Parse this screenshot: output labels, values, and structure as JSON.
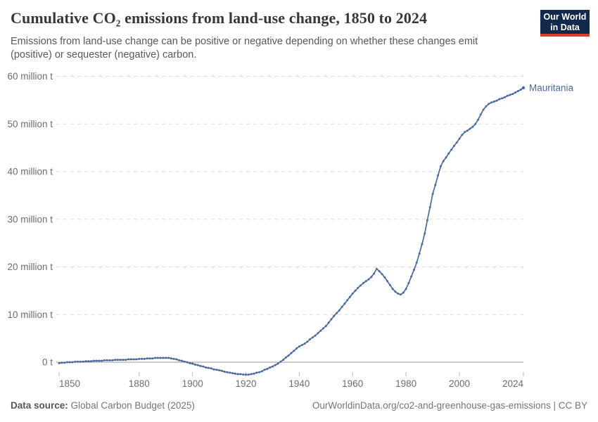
{
  "header": {
    "title": "Cumulative CO₂ emissions from land-use change, 1850 to 2024",
    "subtitle": "Emissions from land-use change can be positive or negative depending on whether these changes emit (positive) or sequester (negative) carbon.",
    "logo": {
      "line1": "Our World",
      "line2": "in Data",
      "bg_color": "#13294b",
      "accent_color": "#dc3b2f"
    }
  },
  "footer": {
    "data_source_label": "Data source:",
    "data_source_value": "Global Carbon Budget (2025)",
    "note_right": "OurWorldinData.org/co2-and-greenhouse-gas-emissions | CC BY"
  },
  "chart_data": {
    "type": "line",
    "title": "Cumulative CO₂ emissions from land-use change, 1850 to 2024",
    "entity_label": "Mauritania",
    "line_color": "#4c6a9d",
    "grid": "horizontal-dashed",
    "legend_position": "end-of-line-label",
    "xlabel": "",
    "ylabel": "",
    "xlim": [
      1850,
      2024
    ],
    "ylim": [
      -3.5,
      61
    ],
    "x_start": 1850,
    "x_step": 1,
    "xticks": [
      1850,
      1880,
      1900,
      1920,
      1940,
      1960,
      1980,
      2000,
      2024
    ],
    "yticks": [
      {
        "value": 0,
        "label": "0 t"
      },
      {
        "value": 10,
        "label": "10 million t"
      },
      {
        "value": 20,
        "label": "20 million t"
      },
      {
        "value": 30,
        "label": "30 million t"
      },
      {
        "value": 40,
        "label": "40 million t"
      },
      {
        "value": 50,
        "label": "50 million t"
      },
      {
        "value": 60,
        "label": "60 million t"
      }
    ],
    "series": [
      {
        "name": "Mauritania",
        "unit": "million t",
        "values": [
          -0.2,
          -0.1,
          -0.1,
          0,
          0,
          0,
          0.1,
          0.1,
          0.1,
          0.1,
          0.2,
          0.2,
          0.2,
          0.3,
          0.3,
          0.3,
          0.3,
          0.4,
          0.4,
          0.4,
          0.4,
          0.5,
          0.5,
          0.5,
          0.5,
          0.5,
          0.6,
          0.6,
          0.6,
          0.6,
          0.7,
          0.7,
          0.7,
          0.8,
          0.8,
          0.8,
          0.9,
          0.9,
          0.9,
          0.9,
          0.9,
          0.9,
          0.8,
          0.7,
          0.6,
          0.4,
          0.3,
          0.1,
          0,
          -0.2,
          -0.3,
          -0.5,
          -0.6,
          -0.8,
          -0.9,
          -1.1,
          -1.2,
          -1.3,
          -1.5,
          -1.6,
          -1.7,
          -1.8,
          -2,
          -2.1,
          -2.2,
          -2.3,
          -2.4,
          -2.5,
          -2.5,
          -2.6,
          -2.6,
          -2.6,
          -2.5,
          -2.4,
          -2.2,
          -2.1,
          -1.9,
          -1.6,
          -1.4,
          -1.1,
          -0.9,
          -0.6,
          -0.3,
          0.1,
          0.5,
          1,
          1.4,
          1.9,
          2.4,
          2.9,
          3.3,
          3.6,
          3.9,
          4.3,
          4.8,
          5.2,
          5.6,
          6.1,
          6.6,
          7.1,
          7.6,
          8.3,
          9,
          9.7,
          10.3,
          10.9,
          11.6,
          12.3,
          13,
          13.7,
          14.4,
          15,
          15.6,
          16.1,
          16.6,
          17,
          17.4,
          17.9,
          18.6,
          19.6,
          19.1,
          18.5,
          17.8,
          17,
          16.2,
          15.4,
          14.8,
          14.4,
          14.2,
          14.6,
          15.4,
          16.6,
          18,
          19.4,
          20.9,
          22.8,
          24.8,
          27,
          29.8,
          32.5,
          35.3,
          37.2,
          39.2,
          41.1,
          42.2,
          43,
          43.8,
          44.6,
          45.4,
          46.1,
          46.9,
          47.7,
          48.3,
          48.6,
          49,
          49.4,
          50,
          50.9,
          52,
          53,
          53.7,
          54.2,
          54.5,
          54.7,
          54.9,
          55.2,
          55.4,
          55.6,
          55.9,
          56.1,
          56.3,
          56.6,
          56.9,
          57.2,
          57.6
        ]
      }
    ]
  }
}
